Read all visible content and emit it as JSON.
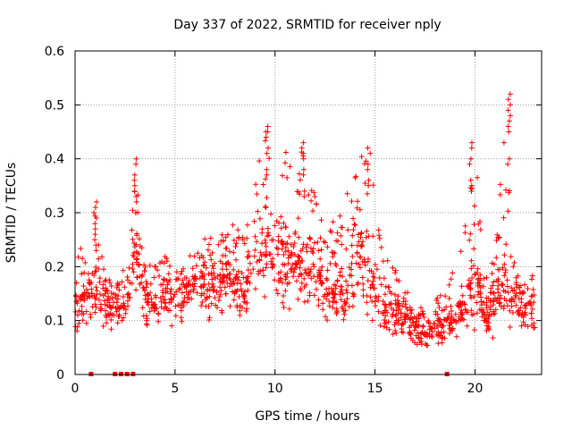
{
  "chart_data": {
    "type": "scatter",
    "title": "Day 337 of 2022, SRMTID for receiver nply",
    "xlabel": "GPS time / hours",
    "ylabel": "SRMTID / TECUs",
    "xlim": [
      0,
      23.33
    ],
    "ylim": [
      0,
      0.6
    ],
    "x_ticks": [
      0,
      5,
      10,
      15,
      20
    ],
    "y_ticks": [
      0,
      0.1,
      0.2,
      0.3,
      0.4,
      0.5,
      0.6
    ],
    "x_tick_labels": [
      "0",
      "5",
      "10",
      "15",
      "20"
    ],
    "y_tick_labels": [
      "0",
      "0.1",
      "0.2",
      "0.3",
      "0.4",
      "0.5",
      "0.6"
    ],
    "grid": true,
    "marker": "plus",
    "color": "#ff0000",
    "envelope": {
      "description": "approximate lower/median/upper envelope of the dense point cloud, in data units",
      "x": [
        0.0,
        0.5,
        1.0,
        1.5,
        2.0,
        2.5,
        3.0,
        3.5,
        4.0,
        4.5,
        5.0,
        5.5,
        6.0,
        6.5,
        7.0,
        7.5,
        8.0,
        8.5,
        9.0,
        9.5,
        10.0,
        10.5,
        11.0,
        11.5,
        12.0,
        12.5,
        13.0,
        13.5,
        14.0,
        14.5,
        15.0,
        15.5,
        16.0,
        16.5,
        17.0,
        17.5,
        18.0,
        18.5,
        19.0,
        19.5,
        20.0,
        20.5,
        21.0,
        21.5,
        22.0,
        22.5,
        23.0
      ],
      "low": [
        0.04,
        0.07,
        0.06,
        0.07,
        0.06,
        0.07,
        0.1,
        0.06,
        0.08,
        0.07,
        0.08,
        0.09,
        0.1,
        0.1,
        0.08,
        0.12,
        0.1,
        0.08,
        0.1,
        0.1,
        0.06,
        0.09,
        0.1,
        0.1,
        0.1,
        0.08,
        0.09,
        0.08,
        0.1,
        0.08,
        0.06,
        0.05,
        0.05,
        0.04,
        0.03,
        0.03,
        0.04,
        0.05,
        0.06,
        0.07,
        0.06,
        0.07,
        0.06,
        0.07,
        0.06,
        0.05,
        0.04
      ],
      "mid": [
        0.12,
        0.14,
        0.15,
        0.13,
        0.12,
        0.12,
        0.22,
        0.14,
        0.12,
        0.15,
        0.14,
        0.15,
        0.17,
        0.16,
        0.15,
        0.18,
        0.16,
        0.14,
        0.2,
        0.22,
        0.21,
        0.2,
        0.2,
        0.18,
        0.2,
        0.15,
        0.14,
        0.13,
        0.22,
        0.2,
        0.15,
        0.12,
        0.11,
        0.1,
        0.08,
        0.07,
        0.08,
        0.09,
        0.1,
        0.13,
        0.18,
        0.11,
        0.13,
        0.16,
        0.14,
        0.12,
        0.13
      ],
      "high": [
        0.17,
        0.32,
        0.33,
        0.18,
        0.17,
        0.2,
        0.4,
        0.22,
        0.2,
        0.22,
        0.2,
        0.22,
        0.25,
        0.27,
        0.25,
        0.28,
        0.3,
        0.26,
        0.35,
        0.46,
        0.38,
        0.42,
        0.43,
        0.41,
        0.34,
        0.3,
        0.28,
        0.35,
        0.38,
        0.42,
        0.36,
        0.22,
        0.2,
        0.16,
        0.13,
        0.12,
        0.14,
        0.16,
        0.2,
        0.28,
        0.43,
        0.18,
        0.22,
        0.52,
        0.2,
        0.17,
        0.19
      ]
    },
    "spikes": [
      {
        "x": 1.0,
        "values": [
          0.24,
          0.26,
          0.28,
          0.3,
          0.32
        ]
      },
      {
        "x": 3.0,
        "values": [
          0.33,
          0.35,
          0.37,
          0.4
        ]
      },
      {
        "x": 9.6,
        "values": [
          0.38,
          0.42,
          0.45,
          0.46
        ]
      },
      {
        "x": 11.4,
        "values": [
          0.34,
          0.38,
          0.41,
          0.43
        ]
      },
      {
        "x": 14.7,
        "values": [
          0.36,
          0.39,
          0.42
        ]
      },
      {
        "x": 19.8,
        "values": [
          0.36,
          0.4,
          0.43
        ]
      },
      {
        "x": 21.7,
        "values": [
          0.4,
          0.46,
          0.48,
          0.5,
          0.52
        ]
      }
    ],
    "zero_markers_x": [
      0.8,
      2.0,
      2.3,
      2.6,
      2.9,
      18.6
    ]
  }
}
